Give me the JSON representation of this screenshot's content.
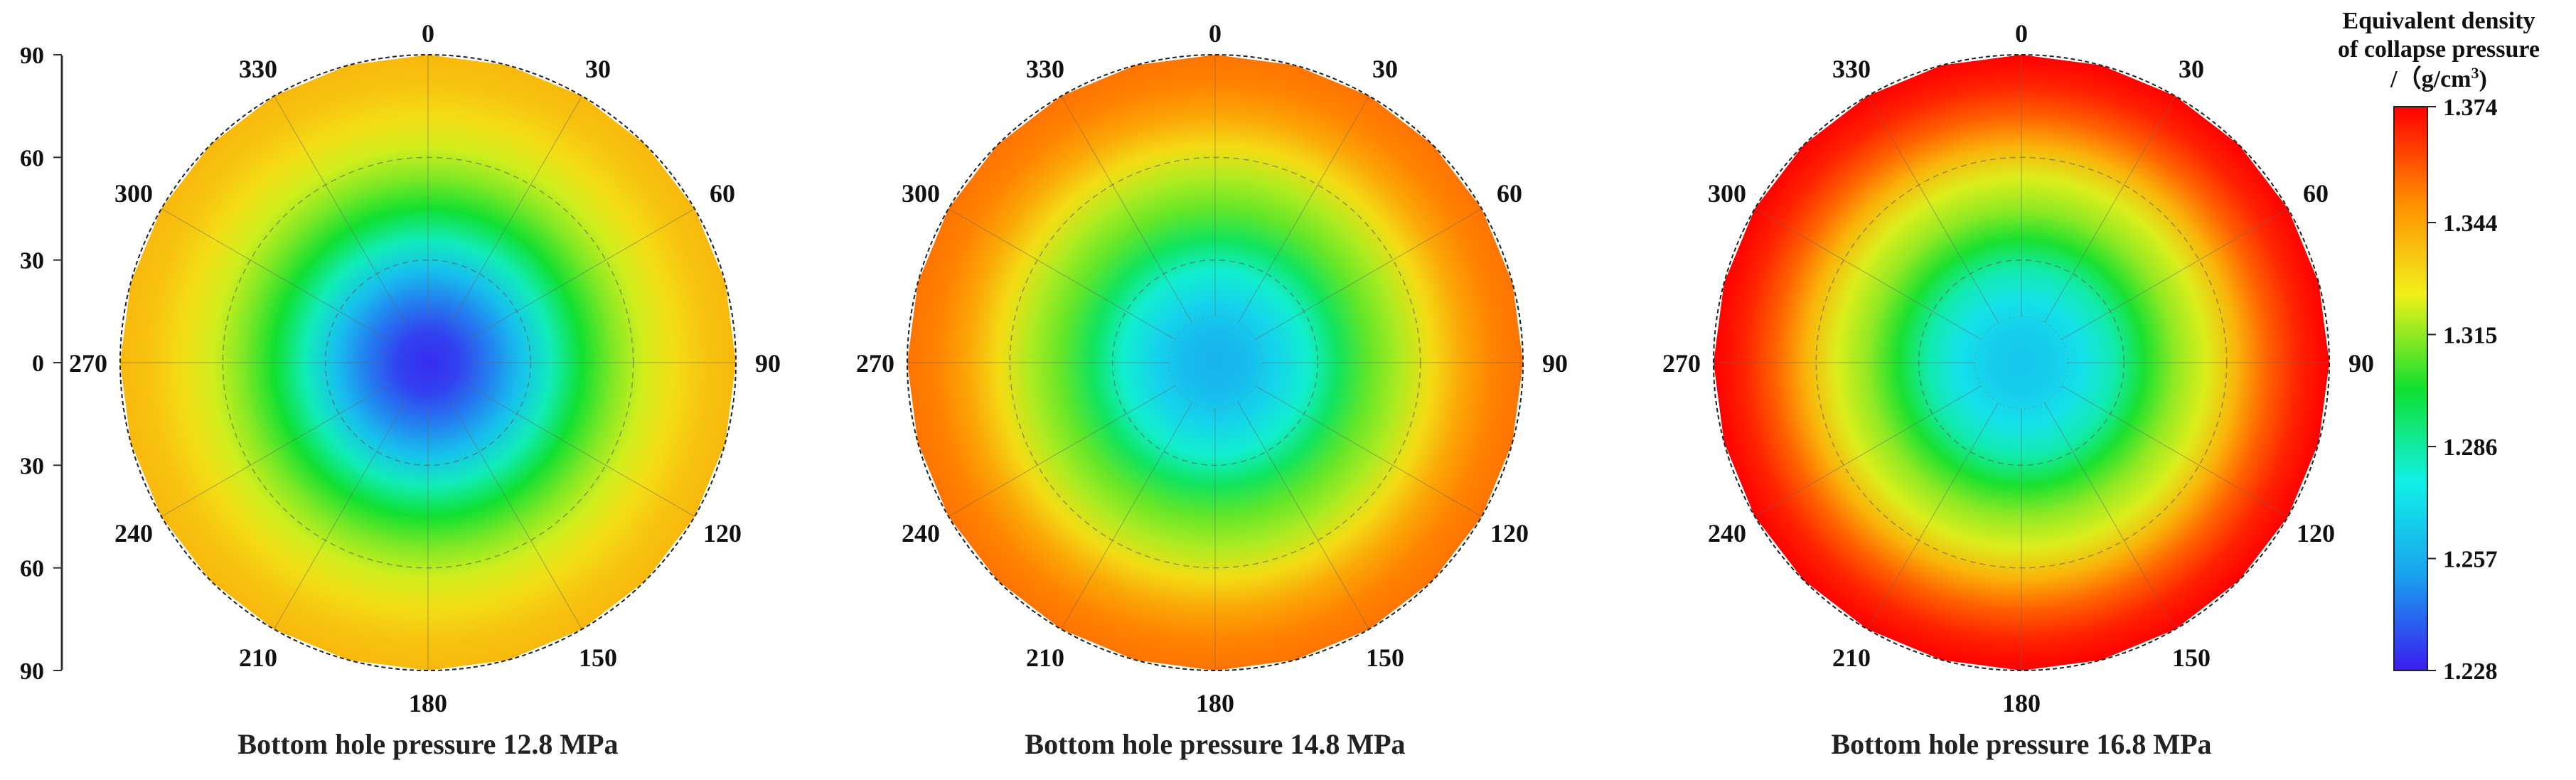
{
  "chart_data": {
    "type": "heatmap",
    "projection": "polar",
    "angular_ticks": [
      "0",
      "30",
      "60",
      "90",
      "120",
      "150",
      "180",
      "210",
      "240",
      "270",
      "300",
      "330"
    ],
    "radial_ticks": [
      "90",
      "60",
      "30",
      "0",
      "30",
      "60",
      "90"
    ],
    "colorbar": {
      "title_lines": [
        "Equivalent density",
        "of collapse pressure",
        "/（g/cm",
        "3",
        ")"
      ],
      "ticks": [
        1.374,
        1.344,
        1.315,
        1.286,
        1.257,
        1.228
      ],
      "tick_labels": [
        "1.374",
        "1.344",
        "1.315",
        "1.286",
        "1.257",
        "1.228"
      ],
      "range": [
        1.228,
        1.374
      ],
      "colors": [
        "#3b1cf0",
        "#1aa0f0",
        "#12f0e8",
        "#10e030",
        "#f0f01a",
        "#ff8c00",
        "#ff0000"
      ]
    },
    "panels": [
      {
        "caption": "Bottom hole pressure 12.8 MPa",
        "radial_profile": [
          [
            0,
            1.231
          ],
          [
            0.1,
            1.235
          ],
          [
            0.2,
            1.246
          ],
          [
            0.3,
            1.262
          ],
          [
            0.4,
            1.283
          ],
          [
            0.5,
            1.301
          ],
          [
            0.6,
            1.313
          ],
          [
            0.7,
            1.322
          ],
          [
            0.8,
            1.33
          ],
          [
            0.9,
            1.336
          ],
          [
            1.0,
            1.339
          ]
        ]
      },
      {
        "caption": "Bottom hole pressure 14.8 MPa",
        "radial_profile": [
          [
            0,
            1.258
          ],
          [
            0.1,
            1.261
          ],
          [
            0.2,
            1.268
          ],
          [
            0.3,
            1.28
          ],
          [
            0.4,
            1.295
          ],
          [
            0.5,
            1.31
          ],
          [
            0.6,
            1.318
          ],
          [
            0.7,
            1.33
          ],
          [
            0.8,
            1.343
          ],
          [
            0.9,
            1.351
          ],
          [
            1.0,
            1.354
          ]
        ]
      },
      {
        "caption": "Bottom hole pressure 16.8 MPa",
        "radial_profile": [
          [
            0,
            1.264
          ],
          [
            0.1,
            1.266
          ],
          [
            0.2,
            1.272
          ],
          [
            0.3,
            1.284
          ],
          [
            0.4,
            1.302
          ],
          [
            0.5,
            1.315
          ],
          [
            0.6,
            1.323
          ],
          [
            0.7,
            1.34
          ],
          [
            0.8,
            1.357
          ],
          [
            0.9,
            1.368
          ],
          [
            1.0,
            1.374
          ]
        ]
      }
    ]
  }
}
